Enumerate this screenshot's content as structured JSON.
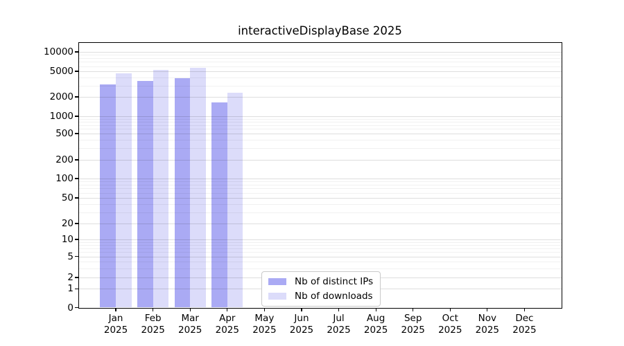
{
  "chart_data": {
    "type": "bar",
    "title": "interactiveDisplayBase 2025",
    "categories": [
      "Jan 2025",
      "Feb 2025",
      "Mar 2025",
      "Apr 2025",
      "May 2025",
      "Jun 2025",
      "Jul 2025",
      "Aug 2025",
      "Sep 2025",
      "Oct 2025",
      "Nov 2025",
      "Dec 2025"
    ],
    "series": [
      {
        "name": "Nb of distinct IPs",
        "color": "#aaaaf4",
        "values": [
          3150,
          3510,
          3900,
          1630,
          null,
          null,
          null,
          null,
          null,
          null,
          null,
          null
        ]
      },
      {
        "name": "Nb of downloads",
        "color": "#dcdcfa",
        "values": [
          4680,
          5250,
          5700,
          2300,
          null,
          null,
          null,
          null,
          null,
          null,
          null,
          null
        ]
      }
    ],
    "yscale": "symlog",
    "yticks": [
      0,
      1,
      2,
      5,
      10,
      20,
      50,
      100,
      200,
      500,
      1000,
      2000,
      5000,
      10000
    ],
    "ylim": [
      0,
      14000
    ],
    "xlabel": "",
    "ylabel": "",
    "grid": true,
    "legend_position": "bottom-center"
  }
}
